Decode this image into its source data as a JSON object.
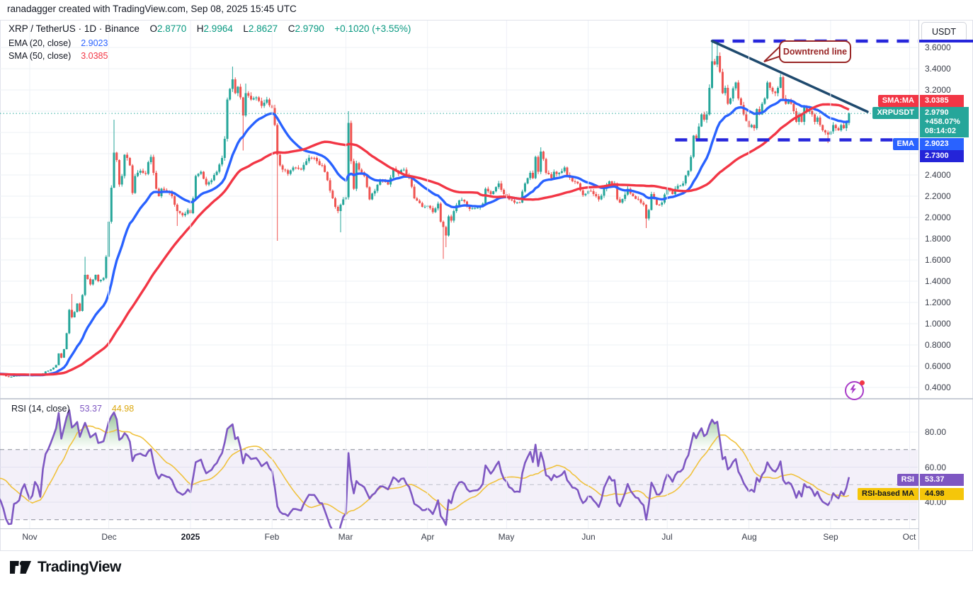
{
  "attribution": "ranadagger created with TradingView.com, Sep 08, 2025 15:45 UTC",
  "header": {
    "symbol": "XRP / TetherUS",
    "sep": "·",
    "interval": "1D",
    "exchange": "Binance",
    "o_label": "O",
    "o": "2.8770",
    "h_label": "H",
    "h": "2.9964",
    "l_label": "L",
    "l": "2.8627",
    "c_label": "C",
    "c": "2.9790",
    "change": "+0.1020 (+3.55%)",
    "ema_label": "EMA (20, close)",
    "ema_value": "2.9023",
    "sma_label": "SMA (50, close)",
    "sma_value": "3.0385"
  },
  "rsi_header": {
    "label": "RSI (14, close)",
    "rsi_value": "53.37",
    "ma_value": "44.98"
  },
  "axis": {
    "currency": "USDT",
    "price_ticks": [
      3.6,
      3.4,
      3.2,
      2.4,
      2.2,
      2.0,
      1.8,
      1.6,
      1.4,
      1.2,
      1.0,
      0.8,
      0.6,
      0.4
    ],
    "rsi_ticks": [
      80,
      60,
      40
    ],
    "time_labels": [
      {
        "label": "Nov",
        "day": 0
      },
      {
        "label": "Dec",
        "day": 30
      },
      {
        "label": "2025",
        "day": 61,
        "bold": true
      },
      {
        "label": "Feb",
        "day": 92
      },
      {
        "label": "Mar",
        "day": 120
      },
      {
        "label": "Apr",
        "day": 151
      },
      {
        "label": "May",
        "day": 181
      },
      {
        "label": "Jun",
        "day": 212
      },
      {
        "label": "Jul",
        "day": 242
      },
      {
        "label": "Aug",
        "day": 273
      },
      {
        "label": "Sep",
        "day": 304
      },
      {
        "label": "Oct",
        "day": 334
      }
    ]
  },
  "price_labels": {
    "sma": {
      "tag": "SMA:MA",
      "value": "3.0385"
    },
    "last": {
      "tag": "XRPUSDT",
      "value": "2.9790",
      "change_pct": "+458.07%",
      "countdown": "08:14:02"
    },
    "ema": {
      "tag": "EMA",
      "value": "2.9023"
    },
    "level": {
      "value": "2.7300"
    }
  },
  "rsi_labels": {
    "rsi": {
      "tag": "RSI",
      "value": "53.37"
    },
    "ma": {
      "tag": "RSI-based MA",
      "value": "44.98"
    }
  },
  "annotation": {
    "text": "Downtrend line"
  },
  "logo": {
    "text": "TradingView"
  },
  "colors": {
    "up": "#26a69a",
    "down": "#ef5350",
    "ema": "#2962ff",
    "sma": "#f23645",
    "rsi": "#7e57c2",
    "rsi_ma": "#f0c23e",
    "rsi_band": "rgba(126,87,194,0.09)",
    "level_blue": "#2626db",
    "trend": "#1f4a6e",
    "last_dotted": "#26a69a",
    "grid": "#eef0f6",
    "dash_dark": "#8a8e99",
    "dash_light": "#bcc0cb",
    "tag_sma_bg": "#f23645",
    "tag_last_bg": "#26a69a",
    "tag_ema_bg": "#2962ff",
    "tag_level_bg": "#2424d8",
    "tag_rsi_bg": "#7e57c2",
    "tag_rsima_bg": "#f5c60a"
  },
  "chart_data": {
    "type": "candlestick",
    "title": "XRP / TetherUS 1D Binance with EMA(20), SMA(50), RSI(14)",
    "x_range": {
      "start": "2024-10-20",
      "end": "2025-10-08"
    },
    "y_axis": {
      "min": 0.3,
      "max": 3.75,
      "tick_step": 0.2
    },
    "rsi_panel": {
      "overbought": 70,
      "middle": 50,
      "oversold": 30,
      "last_rsi": 53.37,
      "last_ma": 44.98,
      "axis_ticks": [
        80,
        60,
        40
      ]
    },
    "levels": {
      "resistance": 3.66,
      "support": 2.73,
      "last_price": 2.979
    },
    "downtrend_line": {
      "from_day": 259,
      "from_price": 3.66,
      "to_day": 318,
      "to_price": 2.995
    },
    "dashed_levels": [
      {
        "price": 3.66,
        "from_day": 259,
        "to_day": 337
      },
      {
        "price": 2.73,
        "from_day": 245,
        "to_day": 329
      }
    ],
    "close_anchors": [
      [
        -40,
        0.53
      ],
      [
        -32,
        0.52
      ],
      [
        -26,
        0.51
      ],
      [
        -20,
        0.53
      ],
      [
        -15,
        0.54
      ],
      [
        -11,
        0.52
      ],
      [
        -8,
        0.5
      ],
      [
        -5,
        0.51
      ],
      [
        -2,
        0.52
      ],
      [
        0,
        0.51
      ],
      [
        2,
        0.52
      ],
      [
        4,
        0.51
      ],
      [
        6,
        0.55
      ],
      [
        8,
        0.57
      ],
      [
        10,
        0.61
      ],
      [
        11,
        0.72
      ],
      [
        12,
        0.68
      ],
      [
        13,
        0.76
      ],
      [
        14,
        0.91
      ],
      [
        15,
        1.13
      ],
      [
        16,
        1.06
      ],
      [
        17,
        1.11
      ],
      [
        18,
        1.19
      ],
      [
        19,
        1.12
      ],
      [
        20,
        1.27
      ],
      [
        21,
        1.46
      ],
      [
        22,
        1.42
      ],
      [
        23,
        1.37
      ],
      [
        25,
        1.46
      ],
      [
        26,
        1.4
      ],
      [
        28,
        1.43
      ],
      [
        29,
        1.63
      ],
      [
        30,
        1.96
      ],
      [
        31,
        2.28
      ],
      [
        32,
        2.61
      ],
      [
        33,
        2.54
      ],
      [
        34,
        2.31
      ],
      [
        35,
        2.39
      ],
      [
        36,
        2.59
      ],
      [
        37,
        2.56
      ],
      [
        38,
        2.49
      ],
      [
        39,
        2.23
      ],
      [
        40,
        2.39
      ],
      [
        42,
        2.44
      ],
      [
        44,
        2.41
      ],
      [
        45,
        2.52
      ],
      [
        46,
        2.57
      ],
      [
        47,
        2.42
      ],
      [
        48,
        2.27
      ],
      [
        49,
        2.2
      ],
      [
        50,
        2.27
      ],
      [
        52,
        2.24
      ],
      [
        54,
        2.2
      ],
      [
        55,
        2.12
      ],
      [
        56,
        2.06
      ],
      [
        58,
        2.02
      ],
      [
        60,
        2.07
      ],
      [
        61,
        2.04
      ],
      [
        62,
        2.18
      ],
      [
        63,
        2.39
      ],
      [
        65,
        2.43
      ],
      [
        67,
        2.31
      ],
      [
        69,
        2.35
      ],
      [
        71,
        2.43
      ],
      [
        73,
        2.56
      ],
      [
        74,
        2.74
      ],
      [
        75,
        3.11
      ],
      [
        76,
        3.21
      ],
      [
        77,
        3.3
      ],
      [
        78,
        3.17
      ],
      [
        79,
        3.23
      ],
      [
        80,
        3.13
      ],
      [
        81,
        2.96
      ],
      [
        82,
        3.17
      ],
      [
        84,
        3.11
      ],
      [
        86,
        3.13
      ],
      [
        88,
        3.05
      ],
      [
        90,
        3.11
      ],
      [
        92,
        3.03
      ],
      [
        93,
        2.87
      ],
      [
        94,
        2.59
      ],
      [
        95,
        2.49
      ],
      [
        96,
        2.45
      ],
      [
        98,
        2.41
      ],
      [
        100,
        2.47
      ],
      [
        103,
        2.45
      ],
      [
        105,
        2.53
      ],
      [
        107,
        2.56
      ],
      [
        109,
        2.53
      ],
      [
        111,
        2.49
      ],
      [
        113,
        2.35
      ],
      [
        115,
        2.18
      ],
      [
        116,
        2.1
      ],
      [
        117,
        2.06
      ],
      [
        118,
        2.12
      ],
      [
        119,
        2.17
      ],
      [
        120,
        2.19
      ],
      [
        121,
        2.89
      ],
      [
        122,
        2.53
      ],
      [
        123,
        2.27
      ],
      [
        124,
        2.51
      ],
      [
        125,
        2.45
      ],
      [
        127,
        2.39
      ],
      [
        129,
        2.17
      ],
      [
        131,
        2.25
      ],
      [
        133,
        2.35
      ],
      [
        136,
        2.31
      ],
      [
        138,
        2.46
      ],
      [
        140,
        2.41
      ],
      [
        142,
        2.45
      ],
      [
        144,
        2.37
      ],
      [
        146,
        2.18
      ],
      [
        149,
        2.1
      ],
      [
        151,
        2.11
      ],
      [
        153,
        2.05
      ],
      [
        155,
        2.13
      ],
      [
        156,
        1.96
      ],
      [
        157,
        1.91
      ],
      [
        158,
        1.83
      ],
      [
        159,
        2.01
      ],
      [
        160,
        1.97
      ],
      [
        161,
        2.06
      ],
      [
        163,
        2.16
      ],
      [
        165,
        2.15
      ],
      [
        167,
        2.08
      ],
      [
        170,
        2.09
      ],
      [
        172,
        2.13
      ],
      [
        173,
        2.27
      ],
      [
        175,
        2.22
      ],
      [
        178,
        2.32
      ],
      [
        180,
        2.22
      ],
      [
        182,
        2.17
      ],
      [
        184,
        2.14
      ],
      [
        186,
        2.14
      ],
      [
        188,
        2.32
      ],
      [
        189,
        2.37
      ],
      [
        190,
        2.42
      ],
      [
        191,
        2.37
      ],
      [
        192,
        2.57
      ],
      [
        193,
        2.43
      ],
      [
        194,
        2.62
      ],
      [
        195,
        2.55
      ],
      [
        196,
        2.42
      ],
      [
        198,
        2.37
      ],
      [
        199,
        2.43
      ],
      [
        201,
        2.42
      ],
      [
        203,
        2.47
      ],
      [
        204,
        2.4
      ],
      [
        206,
        2.34
      ],
      [
        208,
        2.32
      ],
      [
        210,
        2.21
      ],
      [
        212,
        2.25
      ],
      [
        214,
        2.22
      ],
      [
        216,
        2.17
      ],
      [
        218,
        2.27
      ],
      [
        220,
        2.34
      ],
      [
        222,
        2.32
      ],
      [
        223,
        2.17
      ],
      [
        224,
        2.14
      ],
      [
        227,
        2.27
      ],
      [
        229,
        2.2
      ],
      [
        231,
        2.17
      ],
      [
        233,
        2.12
      ],
      [
        234,
        1.99
      ],
      [
        235,
        2.07
      ],
      [
        236,
        2.22
      ],
      [
        238,
        2.12
      ],
      [
        240,
        2.14
      ],
      [
        242,
        2.27
      ],
      [
        244,
        2.22
      ],
      [
        245,
        2.27
      ],
      [
        248,
        2.32
      ],
      [
        250,
        2.44
      ],
      [
        251,
        2.57
      ],
      [
        252,
        2.77
      ],
      [
        253,
        2.74
      ],
      [
        255,
        2.97
      ],
      [
        256,
        2.92
      ],
      [
        257,
        2.97
      ],
      [
        258,
        3.22
      ],
      [
        259,
        3.47
      ],
      [
        260,
        3.44
      ],
      [
        261,
        3.52
      ],
      [
        262,
        3.37
      ],
      [
        263,
        3.17
      ],
      [
        264,
        3.22
      ],
      [
        265,
        3.07
      ],
      [
        266,
        3.12
      ],
      [
        268,
        3.27
      ],
      [
        269,
        3.12
      ],
      [
        271,
        2.97
      ],
      [
        273,
        2.85
      ],
      [
        274,
        2.87
      ],
      [
        275,
        2.84
      ],
      [
        276,
        3.02
      ],
      [
        277,
        2.97
      ],
      [
        278,
        3.07
      ],
      [
        279,
        3.12
      ],
      [
        280,
        3.27
      ],
      [
        281,
        3.22
      ],
      [
        283,
        3.17
      ],
      [
        284,
        3.22
      ],
      [
        285,
        3.32
      ],
      [
        286,
        3.12
      ],
      [
        287,
        3.07
      ],
      [
        288,
        3.09
      ],
      [
        289,
        3.07
      ],
      [
        290,
        3.0
      ],
      [
        291,
        2.9
      ],
      [
        292,
        2.97
      ],
      [
        293,
        2.9
      ],
      [
        294,
        3.04
      ],
      [
        295,
        3.0
      ],
      [
        297,
        2.97
      ],
      [
        298,
        2.9
      ],
      [
        299,
        2.94
      ],
      [
        300,
        2.87
      ],
      [
        301,
        2.82
      ],
      [
        302,
        2.8
      ],
      [
        303,
        2.78
      ],
      [
        304,
        2.81
      ],
      [
        305,
        2.87
      ],
      [
        306,
        2.84
      ],
      [
        307,
        2.82
      ],
      [
        308,
        2.87
      ],
      [
        309,
        2.84
      ],
      [
        310,
        2.89
      ],
      [
        311,
        2.98
      ]
    ],
    "spikes_high": [
      [
        16,
        1.28
      ],
      [
        21,
        1.63
      ],
      [
        32,
        2.92
      ],
      [
        77,
        3.42
      ],
      [
        82,
        3.26
      ],
      [
        121,
        3.0
      ],
      [
        194,
        2.66
      ],
      [
        259,
        3.66
      ],
      [
        261,
        3.64
      ],
      [
        285,
        3.35
      ]
    ],
    "spikes_low": [
      [
        56,
        1.92
      ],
      [
        81,
        2.63
      ],
      [
        94,
        1.78
      ],
      [
        118,
        1.86
      ],
      [
        157,
        1.61
      ],
      [
        158,
        1.72
      ],
      [
        234,
        1.9
      ],
      [
        273,
        2.72
      ],
      [
        303,
        2.7
      ]
    ],
    "indicators": [
      {
        "name": "EMA",
        "period": 20,
        "color": "#2962ff",
        "last": 2.9023
      },
      {
        "name": "SMA",
        "period": 50,
        "color": "#f23645",
        "last": 3.0385
      },
      {
        "name": "RSI",
        "period": 14,
        "color": "#7e57c2",
        "last": 53.37
      },
      {
        "name": "RSI-based MA",
        "period": 14,
        "color": "#f0c23e",
        "last": 44.98
      }
    ]
  }
}
